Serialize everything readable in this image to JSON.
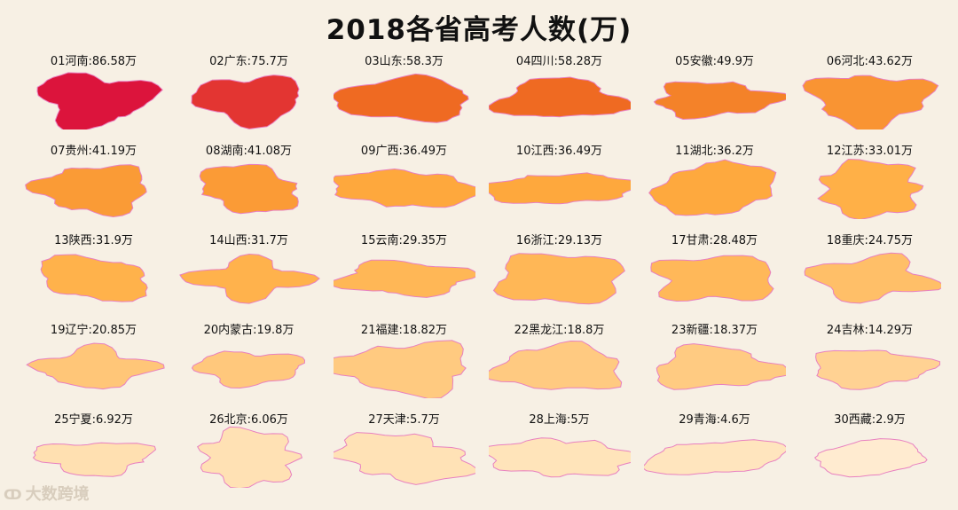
{
  "title": "2018各省高考人数(万)",
  "watermark": "大数跨境",
  "chart_data": {
    "type": "table",
    "unit": "万",
    "entries": [
      {
        "rank": "01",
        "name": "河南",
        "value": 86.58
      },
      {
        "rank": "02",
        "name": "广东",
        "value": 75.7
      },
      {
        "rank": "03",
        "name": "山东",
        "value": 58.3
      },
      {
        "rank": "04",
        "name": "四川",
        "value": 58.28
      },
      {
        "rank": "05",
        "name": "安徽",
        "value": 49.9
      },
      {
        "rank": "06",
        "name": "河北",
        "value": 43.62
      },
      {
        "rank": "07",
        "name": "贵州",
        "value": 41.19
      },
      {
        "rank": "08",
        "name": "湖南",
        "value": 41.08
      },
      {
        "rank": "09",
        "name": "广西",
        "value": 36.49
      },
      {
        "rank": "10",
        "name": "江西",
        "value": 36.49
      },
      {
        "rank": "11",
        "name": "湖北",
        "value": 36.2
      },
      {
        "rank": "12",
        "name": "江苏",
        "value": 33.01
      },
      {
        "rank": "13",
        "name": "陕西",
        "value": 31.9
      },
      {
        "rank": "14",
        "name": "山西",
        "value": 31.7
      },
      {
        "rank": "15",
        "name": "云南",
        "value": 29.35
      },
      {
        "rank": "16",
        "name": "浙江",
        "value": 29.13
      },
      {
        "rank": "17",
        "name": "甘肃",
        "value": 28.48
      },
      {
        "rank": "18",
        "name": "重庆",
        "value": 24.75
      },
      {
        "rank": "19",
        "name": "辽宁",
        "value": 20.85
      },
      {
        "rank": "20",
        "name": "内蒙古",
        "value": 19.8
      },
      {
        "rank": "21",
        "name": "福建",
        "value": 18.82
      },
      {
        "rank": "22",
        "name": "黑龙江",
        "value": 18.8
      },
      {
        "rank": "23",
        "name": "新疆",
        "value": 18.37
      },
      {
        "rank": "24",
        "name": "吉林",
        "value": 14.29
      },
      {
        "rank": "25",
        "name": "宁夏",
        "value": 6.92
      },
      {
        "rank": "26",
        "name": "北京",
        "value": 6.06
      },
      {
        "rank": "27",
        "name": "天津",
        "value": 5.7
      },
      {
        "rank": "28",
        "name": "上海",
        "value": 5
      },
      {
        "rank": "29",
        "name": "青海",
        "value": 4.6
      },
      {
        "rank": "30",
        "name": "西藏",
        "value": 2.9
      }
    ],
    "colors": {
      "max": "#dc143c",
      "high": "#f07020",
      "mid": "#ffad40",
      "low": "#ffe3b8",
      "min": "#fff6ee",
      "outline": "#e880c0"
    }
  }
}
